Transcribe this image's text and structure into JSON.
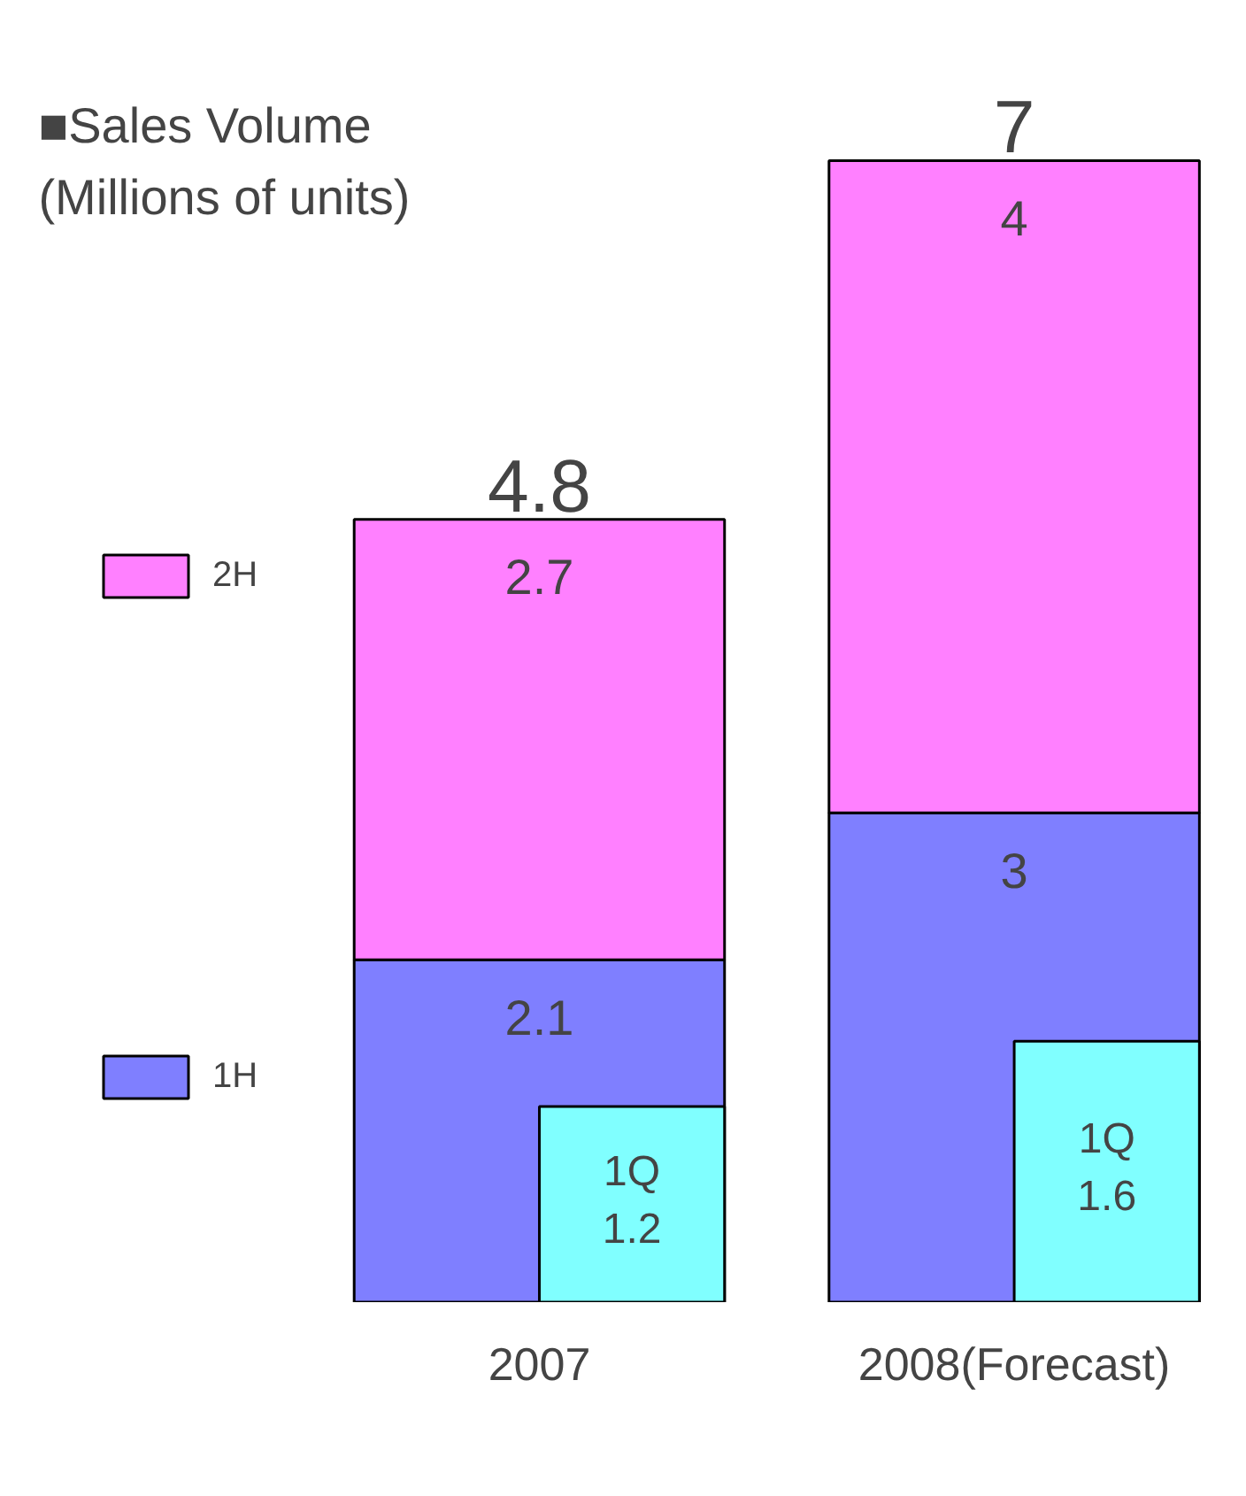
{
  "chart_data": {
    "type": "bar",
    "title": "■Sales Volume\n(Millions of units)",
    "categories": [
      "2007",
      "2008(Forecast)"
    ],
    "stacked": true,
    "legend": "left",
    "data_labels": true,
    "grid": false,
    "series": [
      {
        "name": "1H",
        "color": "#7f7fff",
        "values": [
          2.1,
          3
        ]
      },
      {
        "name": "2H",
        "color": "#ff80ff",
        "values": [
          2.7,
          4
        ]
      },
      {
        "name": "1Q",
        "color": "#80ffff",
        "values": [
          1.2,
          1.6
        ],
        "axis": "y2"
      }
    ],
    "totals": [
      "4.8",
      "7"
    ]
  }
}
